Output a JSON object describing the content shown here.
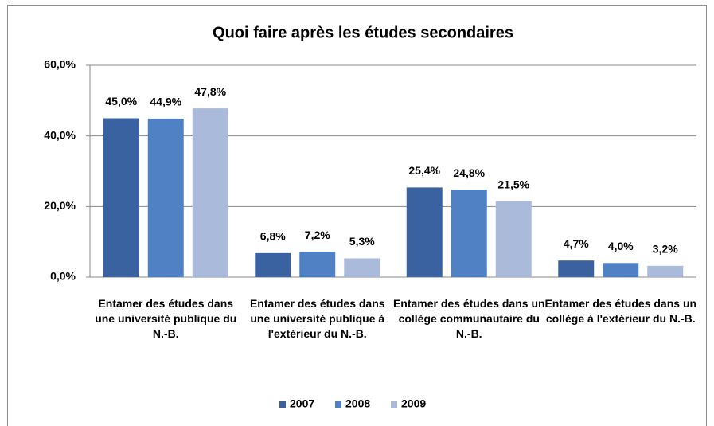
{
  "chart_data": {
    "type": "bar",
    "title": "Quoi faire après les études secondaires",
    "categories": [
      "Entamer des études dans une université publique du N.-B.",
      "Entamer des études dans une université publique à l'extérieur du N.-B.",
      "Entamer des études dans un collège communautaire du N.-B.",
      "Entamer des études dans un collège à l'extérieur du N.-B."
    ],
    "series": [
      {
        "name": "2007",
        "color": "#3b62a0",
        "values": [
          45.0,
          6.8,
          25.4,
          4.7
        ],
        "value_labels": [
          "45,0%",
          "6,8%",
          "25,4%",
          "4,7%"
        ]
      },
      {
        "name": "2008",
        "color": "#4f81c4",
        "values": [
          44.9,
          7.2,
          24.8,
          4.0
        ],
        "value_labels": [
          "44,9%",
          "7,2%",
          "24,8%",
          "4,0%"
        ]
      },
      {
        "name": "2009",
        "color": "#aabada",
        "values": [
          47.8,
          5.3,
          21.5,
          3.2
        ],
        "value_labels": [
          "47,8%",
          "5,3%",
          "21,5%",
          "3,2%"
        ]
      }
    ],
    "ylim": [
      0,
      60
    ],
    "yticks": [
      {
        "value": 0,
        "label": "0,0%"
      },
      {
        "value": 20,
        "label": "20,0%"
      },
      {
        "value": 40,
        "label": "40,0%"
      },
      {
        "value": 60,
        "label": "60,0%"
      }
    ],
    "grid": true,
    "legend": "bottom"
  }
}
